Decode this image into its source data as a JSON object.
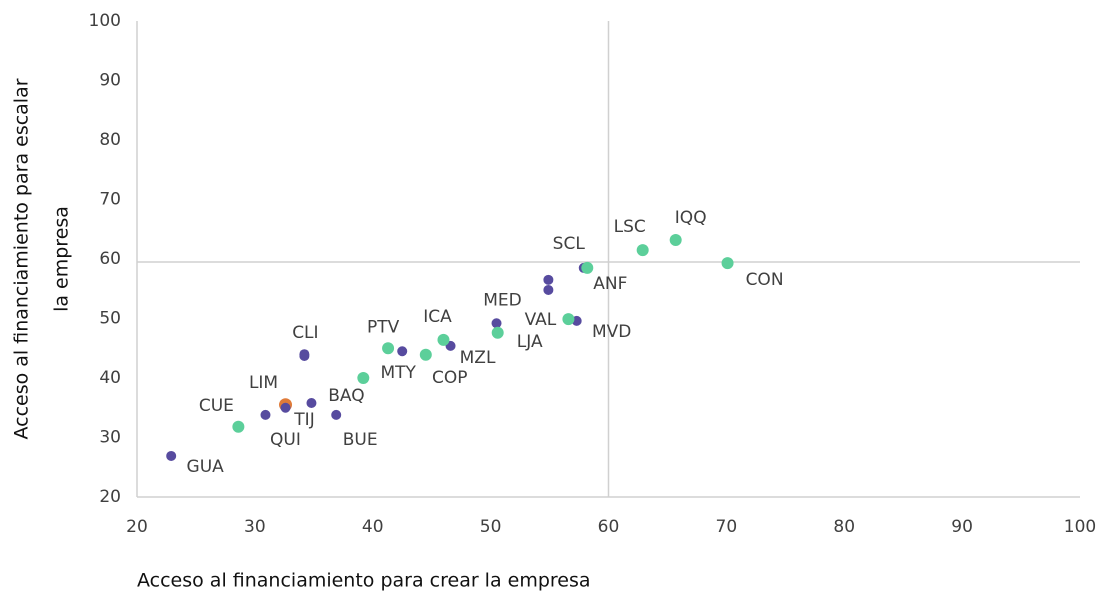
{
  "chart_data": {
    "type": "scatter",
    "xlabel": "Acceso al financiamiento para crear la empresa",
    "ylabel": [
      "Acceso al financiamiento para escalar",
      "la empresa"
    ],
    "xlim": [
      20,
      100
    ],
    "xticks": [
      20,
      30,
      40,
      50,
      60,
      70,
      80,
      90,
      100
    ],
    "ylim": [
      20,
      100
    ],
    "yticks": [
      20,
      30,
      40,
      50,
      60,
      70,
      80,
      90,
      100
    ],
    "reference_lines": {
      "x": 60,
      "y": 59.5
    },
    "series": [
      {
        "color": "#e07b39",
        "x": [
          32.6
        ],
        "values": [
          35.5
        ],
        "labels": [
          "LIM"
        ]
      },
      {
        "color": "#574b9f",
        "x": [
          22.9,
          30.9,
          32.6,
          34.8,
          36.9,
          34.2,
          34.2,
          42.5,
          46.6,
          50.5,
          54.9,
          54.9,
          57.9,
          57.3
        ],
        "values": [
          26.9,
          33.8,
          35.0,
          35.8,
          33.8,
          43.7,
          44.0,
          44.5,
          45.4,
          49.2,
          56.5,
          54.8,
          58.5,
          49.6
        ],
        "labels": [
          "GUA",
          "QUI",
          "TIJ",
          "BAQ",
          "BUE",
          "CLI",
          null,
          "MTY",
          "MZL",
          "MED",
          null,
          null,
          "SCL",
          "MVD"
        ]
      },
      {
        "color": "#5ccf9a",
        "x": [
          28.6,
          39.2,
          41.3,
          44.5,
          46.0,
          50.6,
          56.6,
          58.2,
          62.9,
          65.7,
          70.1
        ],
        "values": [
          31.8,
          40.0,
          45.0,
          43.9,
          46.4,
          47.6,
          49.9,
          58.5,
          61.5,
          63.2,
          59.3
        ],
        "labels": [
          "CUE",
          null,
          "PTV",
          "COP",
          "ICA",
          "LJA",
          "VAL",
          "ANF",
          "LSC",
          "IQQ",
          "CON"
        ]
      }
    ]
  }
}
